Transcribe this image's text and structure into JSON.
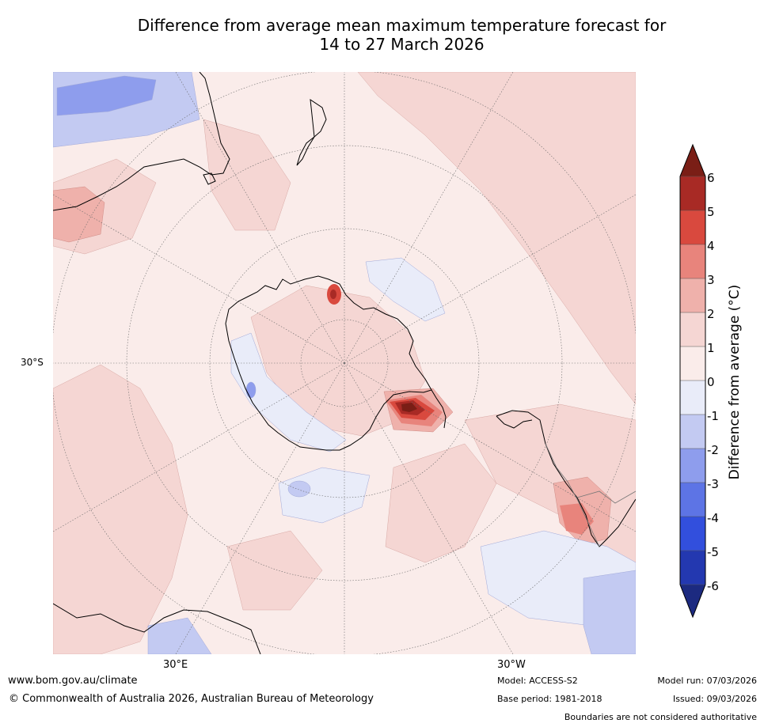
{
  "title_line1": "Difference from average mean maximum temperature forecast for",
  "title_line2": "14 to 27 March 2026",
  "labels": {
    "lat": "30°S",
    "lon_left": "30°E",
    "lon_right": "30°W"
  },
  "legend": {
    "title": "Difference from average (°C)",
    "ticks": [
      "6",
      "5",
      "4",
      "3",
      "2",
      "1",
      "0",
      "-1",
      "-2",
      "-3",
      "-4",
      "-5",
      "-6"
    ],
    "colors": {
      "over": "#7a1e16",
      "5_6": "#a82a25",
      "4_5": "#d9493e",
      "3_4": "#e8847c",
      "2_3": "#efb1ab",
      "1_2": "#f5d6d3",
      "0_1": "#faecea",
      "m1_0": "#e9ecf9",
      "m2_m1": "#c3caf2",
      "m3_m2": "#8e9ded",
      "m4_m3": "#5d74e5",
      "m5_m4": "#324fdd",
      "m6_m5": "#2338b0",
      "under": "#1c2a80"
    }
  },
  "footer": {
    "url": "www.bom.gov.au/climate",
    "copyright": "© Commonwealth of Australia 2026, Australian Bureau of Meteorology",
    "model": "Model: ACCESS-S2",
    "base_period": "Base period: 1981-2018",
    "model_run": "Model run: 07/03/2026",
    "issued": "Issued: 09/03/2026",
    "boundaries": "Boundaries are not considered authoritative"
  }
}
